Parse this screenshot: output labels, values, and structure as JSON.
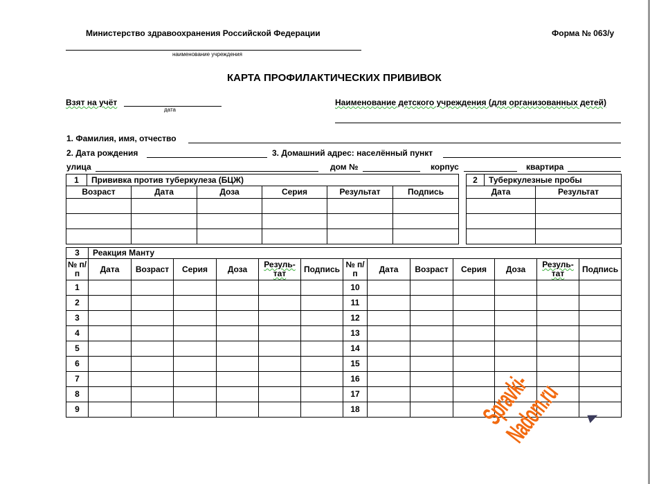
{
  "header": {
    "ministry": "Министерство здравоохранения Российской Федерации",
    "form_number": "Форма № 063/у",
    "institution_caption": "наименование  учреждения",
    "title": "КАРТА ПРОФИЛАКТИЧЕСКИХ ПРИВИВОК"
  },
  "fields": {
    "registered": "Взят на учёт",
    "date_caption": "дата",
    "child_institution": "Наименование детского учреждения (для организованных детей)",
    "full_name": "1. Фамилия, имя, отчество",
    "birth_date": "2. Дата рождения",
    "address": "3. Домашний адрес: населённый пункт",
    "street": "улица",
    "house": "дом №",
    "building": "корпус",
    "apartment": "квартира"
  },
  "bcg": {
    "number": "1",
    "title": "Прививка против туберкулеза (БЦЖ)",
    "columns": [
      "Возраст",
      "Дата",
      "Доза",
      "Серия",
      "Результат",
      "Подпись"
    ],
    "rows": 3
  },
  "tb_tests": {
    "number": "2",
    "title": "Туберкулезные пробы",
    "columns": [
      "Дата",
      "Результат"
    ],
    "rows": 3
  },
  "mantoux": {
    "number": "3",
    "title": "Реакция Манту",
    "columns": [
      "№ п/п",
      "Дата",
      "Возраст",
      "Серия",
      "Доза",
      "Резуль-тат",
      "Подпись"
    ],
    "left_numbers": [
      "1",
      "2",
      "3",
      "4",
      "5",
      "6",
      "7",
      "8",
      "9"
    ],
    "right_numbers": [
      "10",
      "11",
      "12",
      "13",
      "14",
      "15",
      "16",
      "17",
      "18"
    ]
  },
  "watermark": "Spravki-Nadom.ru",
  "colors": {
    "watermark": "#f26a10",
    "spellcheck": "#3cae3c"
  }
}
